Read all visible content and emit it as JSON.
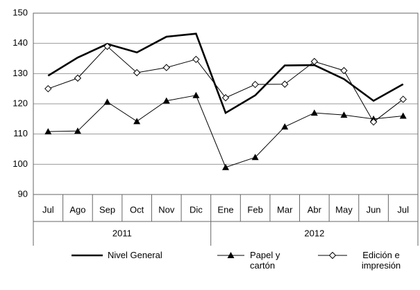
{
  "chart_data": {
    "type": "line",
    "groups": [
      {
        "name": "2011",
        "categories": [
          "Jul",
          "Ago",
          "Sep",
          "Oct",
          "Nov",
          "Dic"
        ]
      },
      {
        "name": "2012",
        "categories": [
          "Ene",
          "Feb",
          "Mar",
          "Abr",
          "May",
          "Jun",
          "Jul"
        ]
      }
    ],
    "series": [
      {
        "name": "Nivel General",
        "color": "#000000",
        "marker": "none",
        "values": [
          129.3,
          135.3,
          139.8,
          137,
          142.2,
          143.2,
          117,
          122.8,
          132.7,
          132.8,
          128.2,
          121,
          126.5
        ]
      },
      {
        "name": "Papel y cartón",
        "color": "#000000",
        "marker": "triangle",
        "values": [
          110.8,
          111,
          120.6,
          114.2,
          121,
          122.8,
          99,
          102.3,
          112.4,
          117,
          116.3,
          115,
          116
        ]
      },
      {
        "name": "Edición e impresión",
        "color": "#000000",
        "marker": "diamond",
        "values": [
          125,
          128.5,
          139,
          130.3,
          132,
          134.7,
          122,
          126.4,
          126.5,
          134,
          131,
          114,
          121.5
        ]
      }
    ],
    "ylim": [
      90,
      150
    ],
    "yticks": [
      90,
      100,
      110,
      120,
      130,
      140,
      150
    ],
    "grid": true,
    "legend": "bottom"
  }
}
